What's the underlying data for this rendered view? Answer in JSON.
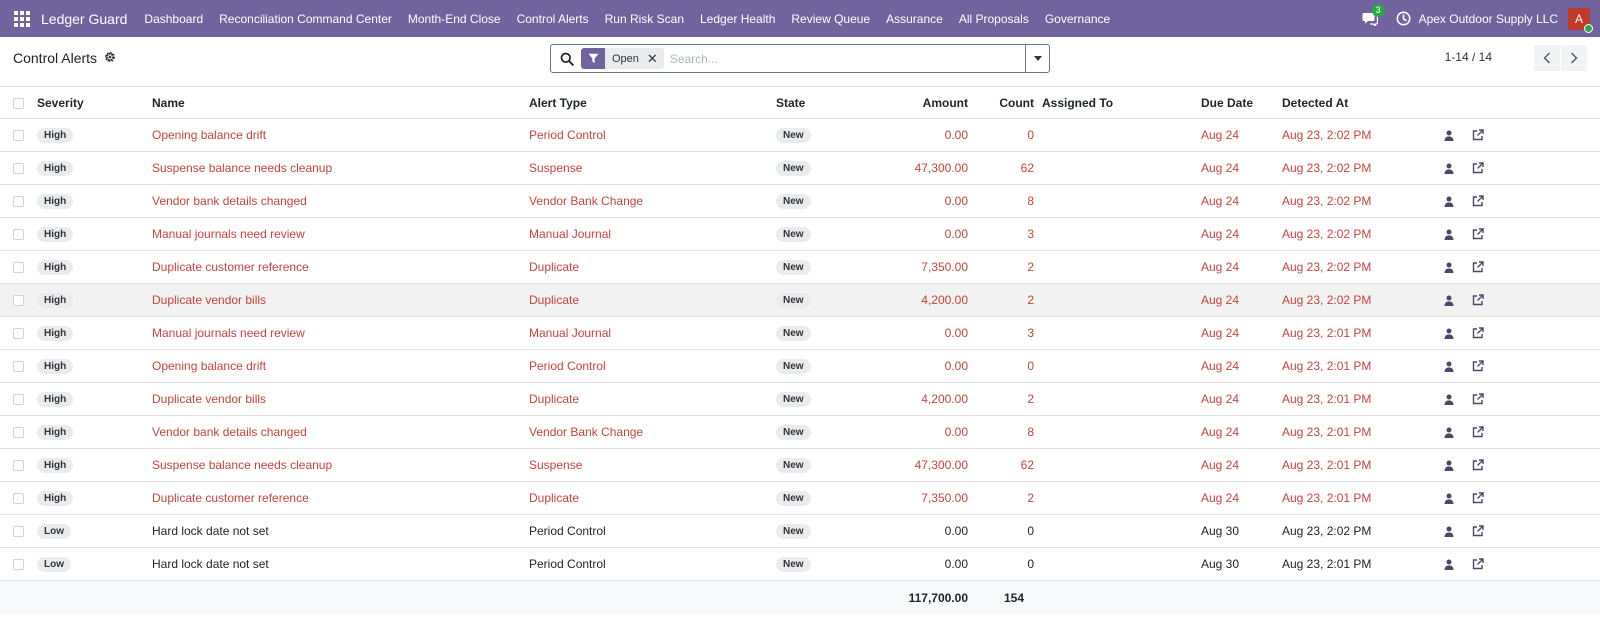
{
  "navbar": {
    "brand": "Ledger Guard",
    "menu": [
      "Dashboard",
      "Reconciliation Command Center",
      "Month-End Close",
      "Control Alerts",
      "Run Risk Scan",
      "Ledger Health",
      "Review Queue",
      "Assurance",
      "All Proposals",
      "Governance"
    ],
    "chat_count": "3",
    "company": "Apex Outdoor Supply LLC",
    "avatar_initial": "A"
  },
  "control": {
    "title": "Control Alerts",
    "facet_label": "Open",
    "search_placeholder": "Search...",
    "pager": "1-14 / 14"
  },
  "table": {
    "headers": {
      "severity": "Severity",
      "name": "Name",
      "alert_type": "Alert Type",
      "state": "State",
      "amount": "Amount",
      "count": "Count",
      "assigned_to": "Assigned To",
      "due_date": "Due Date",
      "detected_at": "Detected At"
    },
    "rows": [
      {
        "severity": "High",
        "name": "Opening balance drift",
        "alert_type": "Period Control",
        "state": "New",
        "amount": "0.00",
        "count": "0",
        "assigned_to": "",
        "due_date": "Aug 24",
        "detected_at": "Aug 23, 2:02 PM",
        "overdue": true
      },
      {
        "severity": "High",
        "name": "Suspense balance needs cleanup",
        "alert_type": "Suspense",
        "state": "New",
        "amount": "47,300.00",
        "count": "62",
        "assigned_to": "",
        "due_date": "Aug 24",
        "detected_at": "Aug 23, 2:02 PM",
        "overdue": true
      },
      {
        "severity": "High",
        "name": "Vendor bank details changed",
        "alert_type": "Vendor Bank Change",
        "state": "New",
        "amount": "0.00",
        "count": "8",
        "assigned_to": "",
        "due_date": "Aug 24",
        "detected_at": "Aug 23, 2:02 PM",
        "overdue": true
      },
      {
        "severity": "High",
        "name": "Manual journals need review",
        "alert_type": "Manual Journal",
        "state": "New",
        "amount": "0.00",
        "count": "3",
        "assigned_to": "",
        "due_date": "Aug 24",
        "detected_at": "Aug 23, 2:02 PM",
        "overdue": true
      },
      {
        "severity": "High",
        "name": "Duplicate customer reference",
        "alert_type": "Duplicate",
        "state": "New",
        "amount": "7,350.00",
        "count": "2",
        "assigned_to": "",
        "due_date": "Aug 24",
        "detected_at": "Aug 23, 2:02 PM",
        "overdue": true
      },
      {
        "severity": "High",
        "name": "Duplicate vendor bills",
        "alert_type": "Duplicate",
        "state": "New",
        "amount": "4,200.00",
        "count": "2",
        "assigned_to": "",
        "due_date": "Aug 24",
        "detected_at": "Aug 23, 2:02 PM",
        "overdue": true
      },
      {
        "severity": "High",
        "name": "Manual journals need review",
        "alert_type": "Manual Journal",
        "state": "New",
        "amount": "0.00",
        "count": "3",
        "assigned_to": "",
        "due_date": "Aug 24",
        "detected_at": "Aug 23, 2:01 PM",
        "overdue": true
      },
      {
        "severity": "High",
        "name": "Opening balance drift",
        "alert_type": "Period Control",
        "state": "New",
        "amount": "0.00",
        "count": "0",
        "assigned_to": "",
        "due_date": "Aug 24",
        "detected_at": "Aug 23, 2:01 PM",
        "overdue": true
      },
      {
        "severity": "High",
        "name": "Duplicate vendor bills",
        "alert_type": "Duplicate",
        "state": "New",
        "amount": "4,200.00",
        "count": "2",
        "assigned_to": "",
        "due_date": "Aug 24",
        "detected_at": "Aug 23, 2:01 PM",
        "overdue": true
      },
      {
        "severity": "High",
        "name": "Vendor bank details changed",
        "alert_type": "Vendor Bank Change",
        "state": "New",
        "amount": "0.00",
        "count": "8",
        "assigned_to": "",
        "due_date": "Aug 24",
        "detected_at": "Aug 23, 2:01 PM",
        "overdue": true
      },
      {
        "severity": "High",
        "name": "Suspense balance needs cleanup",
        "alert_type": "Suspense",
        "state": "New",
        "amount": "47,300.00",
        "count": "62",
        "assigned_to": "",
        "due_date": "Aug 24",
        "detected_at": "Aug 23, 2:01 PM",
        "overdue": true
      },
      {
        "severity": "High",
        "name": "Duplicate customer reference",
        "alert_type": "Duplicate",
        "state": "New",
        "amount": "7,350.00",
        "count": "2",
        "assigned_to": "",
        "due_date": "Aug 24",
        "detected_at": "Aug 23, 2:01 PM",
        "overdue": true
      },
      {
        "severity": "Low",
        "name": "Hard lock date not set",
        "alert_type": "Period Control",
        "state": "New",
        "amount": "0.00",
        "count": "0",
        "assigned_to": "",
        "due_date": "Aug 30",
        "detected_at": "Aug 23, 2:02 PM",
        "overdue": false
      },
      {
        "severity": "Low",
        "name": "Hard lock date not set",
        "alert_type": "Period Control",
        "state": "New",
        "amount": "0.00",
        "count": "0",
        "assigned_to": "",
        "due_date": "Aug 30",
        "detected_at": "Aug 23, 2:01 PM",
        "overdue": false
      }
    ],
    "totals": {
      "amount": "117,700.00",
      "count": "154"
    }
  },
  "colors": {
    "navbar": "#71639e",
    "overdue_text": "#c8443c",
    "online": "#28a745"
  },
  "icons": {
    "apps": "apps-grid-icon",
    "chat": "chat-icon",
    "clock": "clock-icon",
    "settings": "gear-icon",
    "search": "search-icon",
    "filter": "filter-icon",
    "row_assign": "user-icon",
    "row_open": "external-link-icon"
  }
}
